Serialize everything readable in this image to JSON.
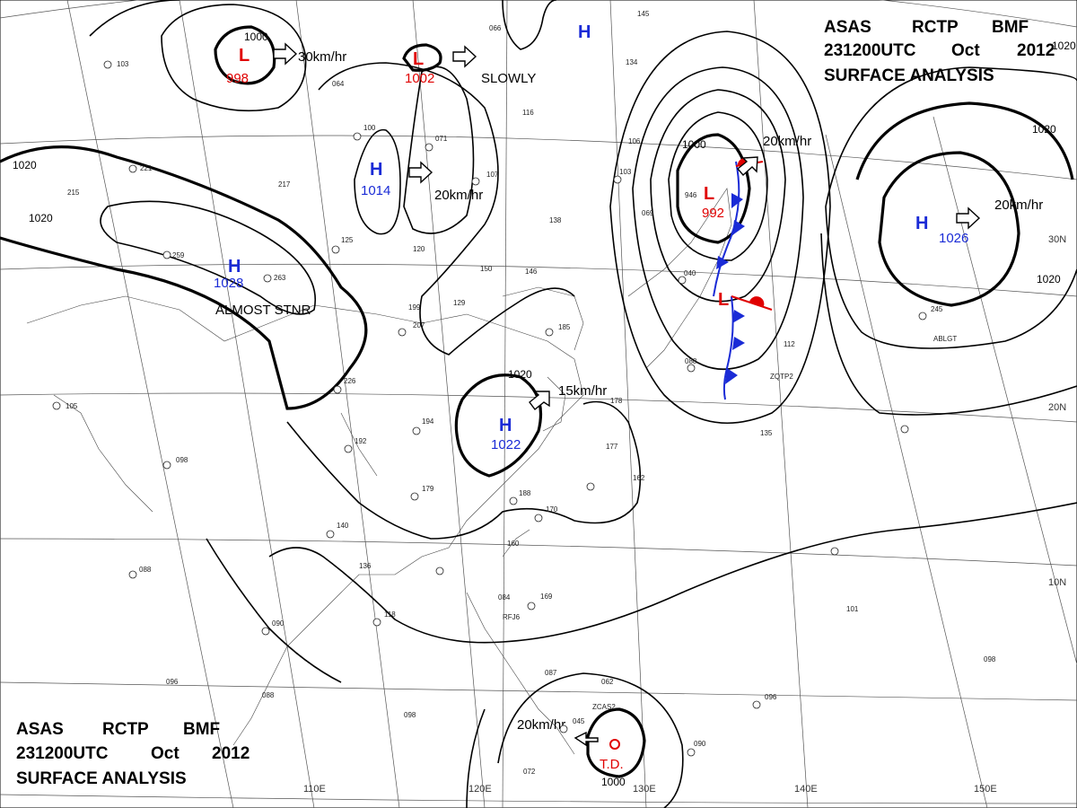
{
  "chart": {
    "agency": "ASAS",
    "station": "RCTP",
    "office": "BMF",
    "time": "231200UTC",
    "month": "Oct",
    "year": "2012",
    "product": "SURFACE ANALYSIS"
  },
  "longitude_labels": [
    "110E",
    "120E",
    "130E",
    "140E",
    "150E"
  ],
  "latitude_labels": [
    "30N",
    "20N",
    "10N"
  ],
  "isobar_labels": [
    "1020",
    "1020",
    "1000",
    "1020",
    "1020",
    "1000",
    "1020",
    "1000",
    "1020"
  ],
  "pressure_systems": [
    {
      "id": "high-north-pacific",
      "type": "H",
      "value": "1026",
      "motion": "20km/hr"
    },
    {
      "id": "high-china-west",
      "type": "H",
      "value": "1028",
      "motion": "ALMOST STNR"
    },
    {
      "id": "high-central-china",
      "type": "H",
      "value": "1014",
      "motion": "20km/hr"
    },
    {
      "id": "high-taiwan-strait",
      "type": "H",
      "value": "1022",
      "motion": "15km/hr"
    },
    {
      "id": "high-far-north",
      "type": "H",
      "value": "",
      "motion": ""
    },
    {
      "id": "low-mongolia",
      "type": "L",
      "value": "998",
      "motion": "30km/hr"
    },
    {
      "id": "low-manchuria",
      "type": "L",
      "value": "1002",
      "motion": "SLOWLY"
    },
    {
      "id": "low-japan",
      "type": "L",
      "value": "992",
      "motion": "20km/hr"
    },
    {
      "id": "low-japan-south",
      "type": "L",
      "value": "",
      "motion": ""
    },
    {
      "id": "td-philippines",
      "type": "T.D.",
      "value": "1000",
      "motion": "20km/hr"
    }
  ],
  "station_markers": [
    "ZQTP2",
    "ABLGT",
    "ZCAS2",
    "RFJ6"
  ],
  "stations": [
    "103",
    "221",
    "215",
    "217",
    "259",
    "263",
    "064",
    "100",
    "071",
    "107",
    "138",
    "146",
    "150",
    "125",
    "120",
    "129",
    "207",
    "199",
    "226",
    "194",
    "192",
    "179",
    "140",
    "136",
    "118",
    "090",
    "088",
    "096",
    "098",
    "105",
    "088",
    "098",
    "185",
    "178",
    "177",
    "188",
    "170",
    "160",
    "162",
    "084",
    "169",
    "087",
    "062",
    "045",
    "072",
    "090",
    "096",
    "101",
    "098",
    "135",
    "112",
    "088",
    "040",
    "946",
    "103",
    "106",
    "134",
    "145",
    "066",
    "116",
    "069",
    "245"
  ]
}
